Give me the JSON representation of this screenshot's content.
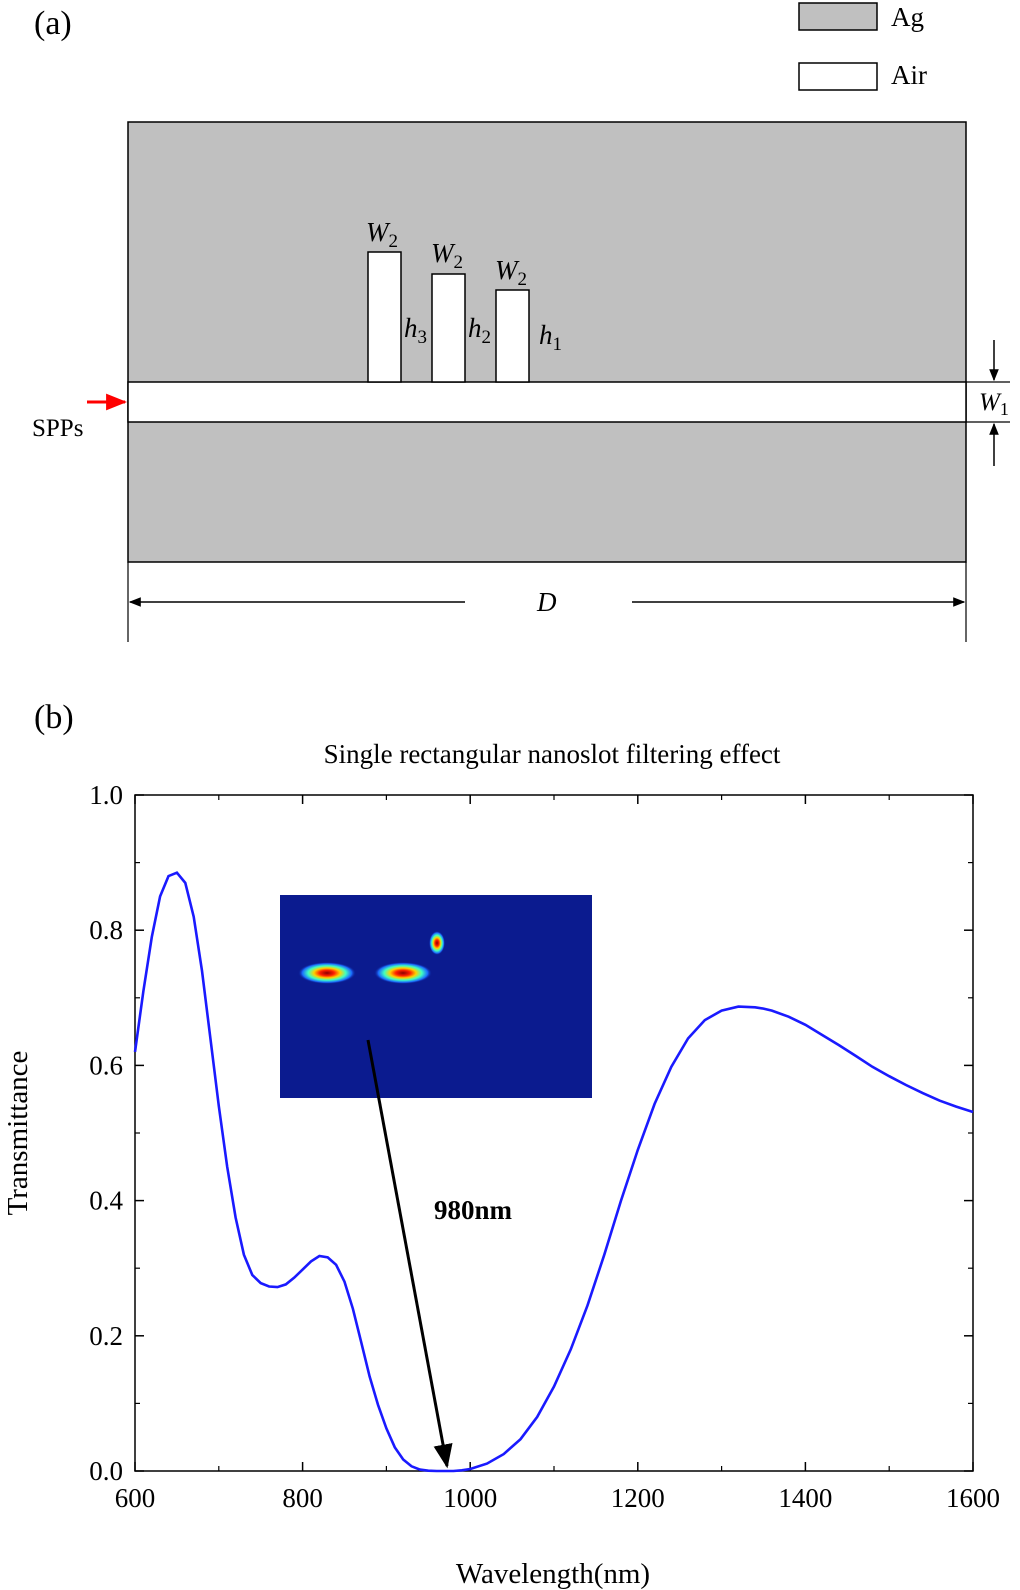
{
  "panel_a": {
    "label": "(a)",
    "legend": [
      {
        "name": "Ag",
        "color": "#c0c0c0"
      },
      {
        "name": "Air",
        "color": "#ffffff"
      }
    ],
    "input_label": "SPPs",
    "input_arrow_color": "#ff0000",
    "slot_width_label": "W",
    "slot_width_sub": "2",
    "heights": [
      {
        "h": "h",
        "sub": "3"
      },
      {
        "h": "h",
        "sub": "2"
      },
      {
        "h": "h",
        "sub": "1"
      }
    ],
    "waveguide_width_label": "W",
    "waveguide_width_sub": "1",
    "length_label": "D"
  },
  "panel_b": {
    "label": "(b)",
    "title": "Single rectangular nanoslot filtering effect",
    "annotation": "980nm",
    "inset_bg_color": "#0b1b8f"
  },
  "chart_data": {
    "type": "line",
    "title": "Single rectangular nanoslot filtering effect",
    "xlabel": "Wavelength(nm)",
    "ylabel": "Transmittance",
    "xlim": [
      600,
      1600
    ],
    "ylim": [
      0.0,
      1.0
    ],
    "xticks": [
      600,
      800,
      1000,
      1200,
      1400,
      1600
    ],
    "yticks": [
      "0.0",
      "0.2",
      "0.4",
      "0.6",
      "0.8",
      "1.0"
    ],
    "grid": false,
    "series": [
      {
        "color": "#1a1aff",
        "x": [
          600,
          610,
          620,
          630,
          640,
          650,
          660,
          670,
          680,
          690,
          700,
          710,
          720,
          730,
          740,
          750,
          760,
          770,
          780,
          790,
          800,
          810,
          820,
          830,
          840,
          850,
          860,
          870,
          880,
          890,
          900,
          910,
          920,
          930,
          940,
          950,
          960,
          970,
          980,
          990,
          1000,
          1020,
          1040,
          1060,
          1080,
          1100,
          1120,
          1140,
          1160,
          1180,
          1200,
          1220,
          1240,
          1260,
          1280,
          1300,
          1320,
          1340,
          1350,
          1360,
          1380,
          1400,
          1420,
          1440,
          1460,
          1480,
          1500,
          1520,
          1540,
          1560,
          1580,
          1600
        ],
        "y": [
          0.62,
          0.71,
          0.79,
          0.85,
          0.88,
          0.885,
          0.87,
          0.82,
          0.74,
          0.64,
          0.54,
          0.45,
          0.375,
          0.32,
          0.29,
          0.278,
          0.273,
          0.272,
          0.276,
          0.286,
          0.298,
          0.31,
          0.318,
          0.316,
          0.305,
          0.28,
          0.24,
          0.19,
          0.14,
          0.098,
          0.063,
          0.035,
          0.017,
          0.007,
          0.002,
          0.0005,
          0.0,
          0.0,
          0.0,
          0.001,
          0.003,
          0.011,
          0.025,
          0.047,
          0.08,
          0.125,
          0.18,
          0.245,
          0.32,
          0.4,
          0.475,
          0.543,
          0.598,
          0.64,
          0.667,
          0.681,
          0.687,
          0.686,
          0.684,
          0.681,
          0.672,
          0.66,
          0.645,
          0.63,
          0.614,
          0.598,
          0.584,
          0.571,
          0.559,
          0.548,
          0.539,
          0.531
        ]
      }
    ]
  }
}
